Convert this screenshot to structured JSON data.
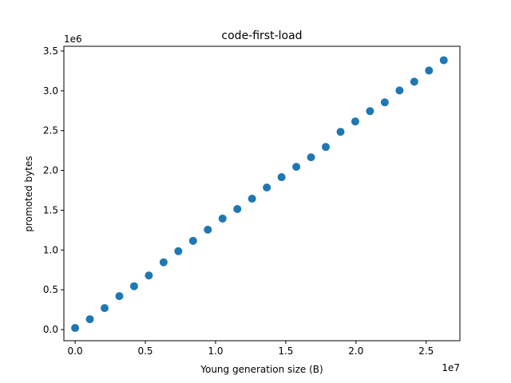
{
  "chart_data": {
    "type": "scatter",
    "title": "code-first-load",
    "xlabel": "Young generation size (B)",
    "ylabel": "promoted bytes",
    "x_offset_label": "1e7",
    "y_offset_label": "1e6",
    "x_scale": 10000000,
    "y_scale": 1000000,
    "xlim": [
      -800000,
      27400000
    ],
    "ylim": [
      -140000,
      3560000
    ],
    "x_ticks": [
      0,
      5000000,
      10000000,
      15000000,
      20000000,
      25000000
    ],
    "x_tick_labels": [
      "0.0",
      "0.5",
      "1.0",
      "1.5",
      "2.0",
      "2.5"
    ],
    "y_ticks": [
      0,
      500000,
      1000000,
      1500000,
      2000000,
      2500000,
      3000000,
      3500000
    ],
    "y_tick_labels": [
      "0.0",
      "0.5",
      "1.0",
      "1.5",
      "2.0",
      "2.5",
      "3.0",
      "3.5"
    ],
    "grid": false,
    "marker_color": "#1f77b4",
    "points": [
      {
        "x": 0,
        "y": 20000
      },
      {
        "x": 1050000,
        "y": 130000
      },
      {
        "x": 2100000,
        "y": 270000
      },
      {
        "x": 3150000,
        "y": 420000
      },
      {
        "x": 4200000,
        "y": 545000
      },
      {
        "x": 5250000,
        "y": 680000
      },
      {
        "x": 6300000,
        "y": 845000
      },
      {
        "x": 7350000,
        "y": 985000
      },
      {
        "x": 8400000,
        "y": 1115000
      },
      {
        "x": 9450000,
        "y": 1255000
      },
      {
        "x": 10500000,
        "y": 1395000
      },
      {
        "x": 11550000,
        "y": 1515000
      },
      {
        "x": 12600000,
        "y": 1645000
      },
      {
        "x": 13650000,
        "y": 1785000
      },
      {
        "x": 14700000,
        "y": 1915000
      },
      {
        "x": 15750000,
        "y": 2045000
      },
      {
        "x": 16800000,
        "y": 2165000
      },
      {
        "x": 17850000,
        "y": 2295000
      },
      {
        "x": 18900000,
        "y": 2485000
      },
      {
        "x": 19950000,
        "y": 2615000
      },
      {
        "x": 21000000,
        "y": 2745000
      },
      {
        "x": 22050000,
        "y": 2855000
      },
      {
        "x": 23100000,
        "y": 3005000
      },
      {
        "x": 24150000,
        "y": 3115000
      },
      {
        "x": 25200000,
        "y": 3255000
      },
      {
        "x": 26250000,
        "y": 3385000
      }
    ]
  }
}
